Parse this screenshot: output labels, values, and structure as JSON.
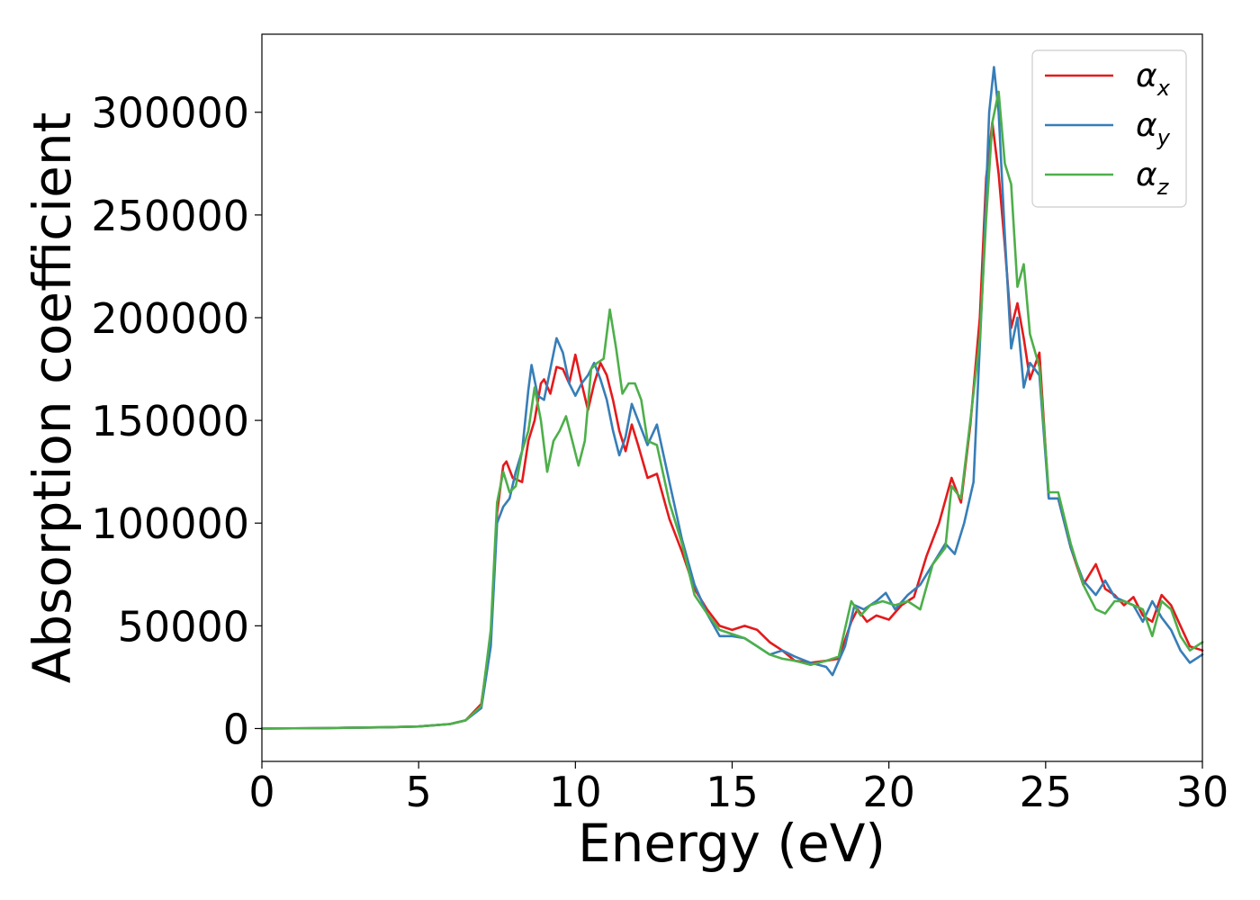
{
  "chart_data": {
    "type": "line",
    "title": "",
    "xlabel": "Energy (eV)",
    "ylabel": "Absorption coefficient",
    "xlim": [
      0,
      30
    ],
    "ylim": [
      -16000,
      338000
    ],
    "xticks": [
      0,
      5,
      10,
      15,
      20,
      25,
      30
    ],
    "xtick_labels": [
      "0",
      "5",
      "10",
      "15",
      "20",
      "25",
      "30"
    ],
    "yticks": [
      0,
      50000,
      100000,
      150000,
      200000,
      250000,
      300000
    ],
    "ytick_labels": [
      "0",
      "50000",
      "100000",
      "150000",
      "200000",
      "250000",
      "300000"
    ],
    "grid": false,
    "legend_position": "top-right",
    "legend": [
      {
        "symbol": "α",
        "sub": "x",
        "color": "#e41a1c"
      },
      {
        "symbol": "α",
        "sub": "y",
        "color": "#377eb8"
      },
      {
        "symbol": "α",
        "sub": "z",
        "color": "#4daf4a"
      }
    ],
    "series": [
      {
        "name": "αx",
        "color": "#e41a1c",
        "x": [
          0,
          2,
          4,
          5,
          6,
          6.5,
          7,
          7.3,
          7.5,
          7.7,
          7.8,
          8.0,
          8.3,
          8.5,
          8.7,
          8.9,
          9.0,
          9.2,
          9.4,
          9.6,
          9.8,
          10.0,
          10.2,
          10.4,
          10.6,
          10.8,
          11.0,
          11.2,
          11.4,
          11.6,
          11.8,
          12.0,
          12.3,
          12.6,
          13.0,
          13.4,
          13.8,
          14.2,
          14.6,
          15.0,
          15.4,
          15.8,
          16.2,
          16.6,
          17.0,
          17.5,
          18.0,
          18.4,
          18.8,
          19.0,
          19.3,
          19.6,
          20.0,
          20.4,
          20.8,
          21.2,
          21.6,
          22.0,
          22.3,
          22.6,
          22.9,
          23.1,
          23.3,
          23.5,
          23.7,
          23.9,
          24.1,
          24.3,
          24.5,
          24.8,
          25.1,
          25.4,
          25.8,
          26.2,
          26.6,
          26.9,
          27.2,
          27.5,
          27.8,
          28.1,
          28.4,
          28.7,
          29.0,
          29.3,
          29.6,
          30.0
        ],
        "values": [
          0,
          200,
          600,
          1000,
          2200,
          4000,
          12000,
          45000,
          105000,
          128000,
          130000,
          122000,
          120000,
          140000,
          150000,
          168000,
          170000,
          163000,
          176000,
          175000,
          168000,
          182000,
          168000,
          155000,
          168000,
          178000,
          172000,
          160000,
          145000,
          135000,
          148000,
          138000,
          122000,
          124000,
          102000,
          86000,
          68000,
          58000,
          50000,
          48000,
          50000,
          48000,
          42000,
          38000,
          33000,
          32000,
          33000,
          34000,
          52000,
          58000,
          52000,
          55000,
          53000,
          60000,
          64000,
          84000,
          100000,
          122000,
          110000,
          148000,
          200000,
          268000,
          295000,
          270000,
          235000,
          195000,
          207000,
          190000,
          170000,
          183000,
          112000,
          112000,
          88000,
          70000,
          80000,
          68000,
          65000,
          60000,
          64000,
          55000,
          52000,
          65000,
          60000,
          50000,
          40000,
          38000
        ]
      },
      {
        "name": "αy",
        "color": "#377eb8",
        "x": [
          0,
          2,
          4,
          5,
          6,
          6.5,
          7,
          7.3,
          7.5,
          7.7,
          7.9,
          8.1,
          8.3,
          8.5,
          8.6,
          8.8,
          9.0,
          9.2,
          9.4,
          9.6,
          9.8,
          10.0,
          10.2,
          10.4,
          10.6,
          10.8,
          11.0,
          11.2,
          11.4,
          11.6,
          11.8,
          12.0,
          12.3,
          12.6,
          13.0,
          13.4,
          13.8,
          14.2,
          14.6,
          15.0,
          15.4,
          15.8,
          16.2,
          16.6,
          17.0,
          17.5,
          18.0,
          18.2,
          18.6,
          18.9,
          19.2,
          19.6,
          19.9,
          20.2,
          20.6,
          21.0,
          21.4,
          21.8,
          22.1,
          22.4,
          22.7,
          23.0,
          23.2,
          23.35,
          23.5,
          23.7,
          23.9,
          24.1,
          24.3,
          24.5,
          24.8,
          25.1,
          25.4,
          25.8,
          26.2,
          26.6,
          26.9,
          27.2,
          27.5,
          27.8,
          28.1,
          28.4,
          28.7,
          29.0,
          29.3,
          29.6,
          30.0
        ],
        "values": [
          0,
          200,
          600,
          1000,
          2200,
          4000,
          10000,
          40000,
          100000,
          108000,
          112000,
          125000,
          135000,
          165000,
          177000,
          162000,
          160000,
          175000,
          190000,
          183000,
          168000,
          162000,
          168000,
          172000,
          178000,
          170000,
          160000,
          145000,
          133000,
          142000,
          158000,
          150000,
          138000,
          148000,
          120000,
          92000,
          70000,
          56000,
          45000,
          45000,
          44000,
          40000,
          36000,
          38000,
          35000,
          32000,
          30000,
          26000,
          40000,
          60000,
          58000,
          62000,
          66000,
          58000,
          65000,
          70000,
          80000,
          90000,
          85000,
          100000,
          120000,
          220000,
          300000,
          322000,
          300000,
          240000,
          185000,
          200000,
          166000,
          178000,
          172000,
          112000,
          112000,
          88000,
          72000,
          65000,
          72000,
          64000,
          62000,
          60000,
          52000,
          62000,
          54000,
          48000,
          38000,
          32000,
          36000
        ]
      },
      {
        "name": "αz",
        "color": "#4daf4a",
        "x": [
          0,
          2,
          4,
          5,
          6,
          6.5,
          7,
          7.3,
          7.5,
          7.7,
          7.9,
          8.1,
          8.3,
          8.5,
          8.7,
          8.9,
          9.1,
          9.3,
          9.5,
          9.7,
          9.9,
          10.1,
          10.3,
          10.5,
          10.7,
          10.9,
          11.1,
          11.3,
          11.5,
          11.7,
          11.9,
          12.1,
          12.3,
          12.6,
          13.0,
          13.4,
          13.8,
          14.2,
          14.6,
          15.0,
          15.4,
          15.8,
          16.2,
          16.6,
          17.0,
          17.5,
          18.0,
          18.4,
          18.8,
          19.1,
          19.4,
          19.8,
          20.2,
          20.6,
          21.0,
          21.4,
          21.8,
          22.0,
          22.3,
          22.6,
          22.9,
          23.1,
          23.3,
          23.5,
          23.7,
          23.9,
          24.1,
          24.3,
          24.5,
          24.8,
          25.1,
          25.4,
          25.8,
          26.2,
          26.6,
          26.9,
          27.2,
          27.5,
          27.8,
          28.1,
          28.4,
          28.7,
          29.0,
          29.3,
          29.6,
          30.0
        ],
        "values": [
          0,
          200,
          600,
          1000,
          2200,
          4000,
          11000,
          48000,
          110000,
          125000,
          115000,
          118000,
          135000,
          145000,
          166000,
          150000,
          125000,
          140000,
          145000,
          152000,
          140000,
          128000,
          140000,
          175000,
          178000,
          180000,
          204000,
          185000,
          163000,
          168000,
          168000,
          160000,
          140000,
          138000,
          110000,
          90000,
          65000,
          56000,
          48000,
          46000,
          44000,
          40000,
          36000,
          34000,
          33000,
          31000,
          33000,
          35000,
          62000,
          55000,
          60000,
          62000,
          60000,
          62000,
          58000,
          80000,
          88000,
          118000,
          112000,
          150000,
          190000,
          248000,
          295000,
          310000,
          275000,
          265000,
          215000,
          226000,
          192000,
          176000,
          115000,
          115000,
          90000,
          70000,
          58000,
          56000,
          62000,
          62000,
          60000,
          58000,
          45000,
          62000,
          58000,
          45000,
          38000,
          42000
        ]
      }
    ]
  }
}
